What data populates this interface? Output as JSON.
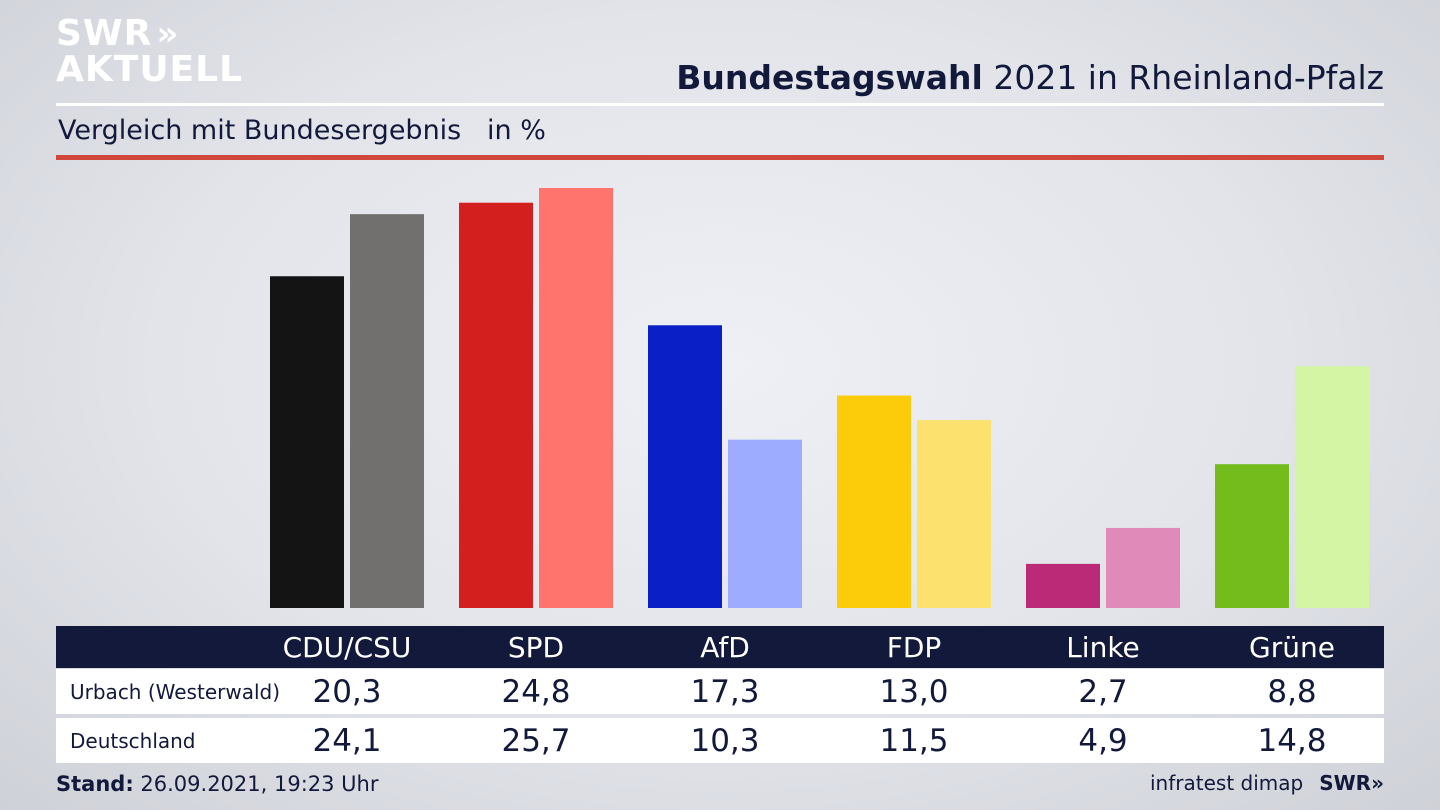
{
  "logo": {
    "line1": "SWR",
    "arrows": "»",
    "line2": "AKTUELL"
  },
  "header": {
    "title_bold": "Bundestagswahl",
    "title_rest": " 2021 in Rheinland-Pfalz"
  },
  "subtitle": "Vergleich mit Bundesergebnis   in %",
  "table": {
    "rows": [
      {
        "label": "Urbach (Westerwald)",
        "values": [
          "20,3",
          "24,8",
          "17,3",
          "13,0",
          "2,7",
          "8,8"
        ]
      },
      {
        "label": "Deutschland",
        "values": [
          "24,1",
          "25,7",
          "10,3",
          "11,5",
          "4,9",
          "14,8"
        ]
      }
    ]
  },
  "footer": {
    "stand_label": "Stand:",
    "stand_value": " 26.09.2021, 19:23 Uhr",
    "source": "infratest dimap",
    "brand": "SWR»"
  },
  "chart_data": {
    "type": "bar",
    "categories": [
      "CDU/CSU",
      "SPD",
      "AfD",
      "FDP",
      "Linke",
      "Grüne"
    ],
    "series": [
      {
        "name": "Urbach (Westerwald)",
        "values": [
          20.3,
          24.8,
          17.3,
          13.0,
          2.7,
          8.8
        ],
        "colors": [
          "#141414",
          "#d41f1f",
          "#0a1fc6",
          "#fccb0a",
          "#bb2a76",
          "#74bb1c"
        ]
      },
      {
        "name": "Deutschland",
        "values": [
          24.1,
          25.7,
          10.3,
          11.5,
          4.9,
          14.8
        ],
        "colors": [
          "#72706f",
          "#ff746d",
          "#9eacff",
          "#fde16f",
          "#e08aba",
          "#d3f5a4"
        ]
      }
    ],
    "ylim": [
      0,
      25.7
    ],
    "grid": false
  }
}
